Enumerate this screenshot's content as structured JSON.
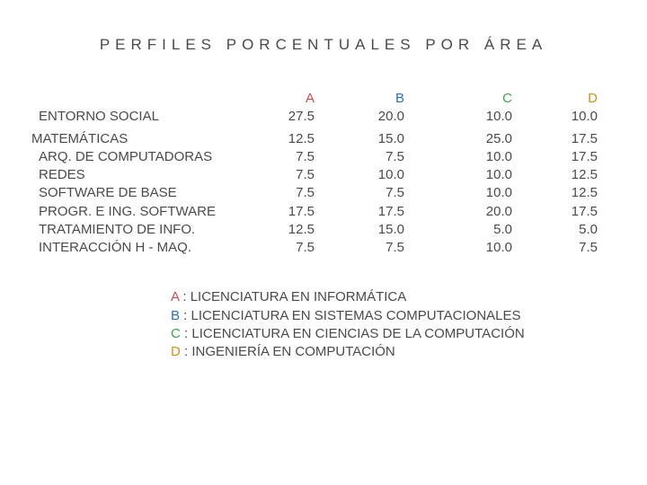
{
  "title": "PERFILES PORCENTUALES POR ÁREA",
  "table": {
    "headers": {
      "a": "A",
      "b": "B",
      "c": "C",
      "d": "D"
    },
    "header_colors": {
      "a": "#c05050",
      "b": "#3070b0",
      "c": "#40a050",
      "d": "#d09020"
    },
    "text_color": "#4a4a4a",
    "background_color": "#ffffff",
    "font_size": 15,
    "rows": [
      {
        "label": "ENTORNO SOCIAL",
        "a": "27.5",
        "b": "20.0",
        "c": "10.0",
        "d": "10.0",
        "indent": true,
        "gap_after": true
      },
      {
        "label": "MATEMÁTICAS",
        "a": "12.5",
        "b": "15.0",
        "c": "25.0",
        "d": "17.5",
        "indent": false
      },
      {
        "label": "ARQ. DE COMPUTADORAS",
        "a": "7.5",
        "b": "7.5",
        "c": "10.0",
        "d": "17.5",
        "indent": true
      },
      {
        "label": "REDES",
        "a": "7.5",
        "b": "10.0",
        "c": "10.0",
        "d": "12.5",
        "indent": true
      },
      {
        "label": "SOFTWARE DE BASE",
        "a": "7.5",
        "b": "7.5",
        "c": "10.0",
        "d": "12.5",
        "indent": true
      },
      {
        "label": "PROGR. E ING. SOFTWARE",
        "a": "17.5",
        "b": "17.5",
        "c": "20.0",
        "d": "17.5",
        "indent": true
      },
      {
        "label": "TRATAMIENTO DE INFO.",
        "a": "12.5",
        "b": "15.0",
        "c": "5.0",
        "d": "5.0",
        "indent": true
      },
      {
        "label": "INTERACCIÓN H - MAQ.",
        "a": "7.5",
        "b": "7.5",
        "c": "10.0",
        "d": "7.5",
        "indent": true
      }
    ]
  },
  "legend": {
    "items": [
      {
        "key": "A",
        "class": "key-a",
        "text": " : LICENCIATURA EN INFORMÁTICA"
      },
      {
        "key": "B",
        "class": "key-b",
        "text": " : LICENCIATURA EN SISTEMAS COMPUTACIONALES"
      },
      {
        "key": "C",
        "class": "key-c",
        "text": " : LICENCIATURA EN CIENCIAS DE LA COMPUTACIÓN"
      },
      {
        "key": "D",
        "class": "key-d",
        "text": " : INGENIERÍA EN COMPUTACIÓN"
      }
    ]
  }
}
